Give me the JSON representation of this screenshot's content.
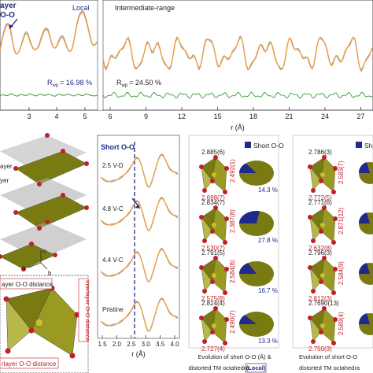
{
  "top_panel": {
    "left_label_layer": "ayer",
    "left_label_oo": "O-O",
    "local_label": "Local",
    "intermediate_label": "Intermediate-range",
    "rwp_left": "R",
    "rwp_left_sub": "wp",
    "rwp_left_value": "= 16.98 %",
    "rwp_right": "R",
    "rwp_right_sub": "wp",
    "rwp_right_value": "= 24.50 %",
    "xaxis_label": "r (Å)",
    "ticks_left": [
      "3",
      "4",
      "5"
    ],
    "ticks_right": [
      "6",
      "9",
      "12",
      "15",
      "18",
      "21",
      "24",
      "27"
    ]
  },
  "structure_panel": {
    "label_layer1": "ayer",
    "label_layer2": "yer",
    "axis_c": "c",
    "axis_a": "a",
    "axis_b": "b",
    "inset_label_top": "ayer O-O distance",
    "inset_label_bottom": "rlayer O-O distance",
    "inset_label_right": "Interlayer O-O distance",
    "inset_label_right2": "Intralayer O-O distance"
  },
  "pdf_panel": {
    "title": "Short O-O",
    "traces": [
      "2.5 V-D",
      "4.8 V-C",
      "4.4 V-C",
      "Pristine"
    ],
    "xticks": [
      "1.5",
      "2.0",
      "2.5",
      "3.0",
      "3.5",
      "4.0"
    ],
    "xlabel": "r (Å)"
  },
  "octa_left": {
    "legend": "Short O-O",
    "caption_line1": "Evolution of short O-O (Å) &",
    "caption_line2": "distorted TM octahedra",
    "caption_tag": "(Local)",
    "rows": [
      {
        "top": "2.885(6)",
        "side": "2.492(1)",
        "bottom": "2.698(7)",
        "pct": "14.3 %"
      },
      {
        "top": "2.834(7)",
        "side": "2.387(8)",
        "bottom": "2.530(7)",
        "pct": "27.8 %"
      },
      {
        "top": "2.791(5)",
        "side": "2.584(8)",
        "bottom": "2.575(8)",
        "pct": "16.7 %"
      },
      {
        "top": "2.824(4)",
        "side": "2.490(7)",
        "bottom": "2.727(4)",
        "pct": "13.3 %"
      }
    ]
  },
  "octa_right": {
    "legend": "Sh",
    "caption_line1": "Evolution of short O-O",
    "caption_line2": "distorted TM octahedra",
    "rows": [
      {
        "top": "2.786(3)",
        "side": "2.583(7)",
        "bottom": "2.772(5)"
      },
      {
        "top": "2.771(6)",
        "side": "2.871(12)",
        "bottom": "2.632(8)"
      },
      {
        "top": "2.796(3)",
        "side": "2.584(9)",
        "bottom": "2.812(3)"
      },
      {
        "top": "2.7690(13)",
        "side": "2.589(4)",
        "bottom": "2.750(3)"
      }
    ]
  },
  "colors": {
    "fit": "#e8a04a",
    "data": "#9a9a9a",
    "diff": "#3a9a3a",
    "blue": "#1f2a8a",
    "red": "#c0202a",
    "olive": "#7a7a12",
    "olive_light": "#b8b84a"
  }
}
